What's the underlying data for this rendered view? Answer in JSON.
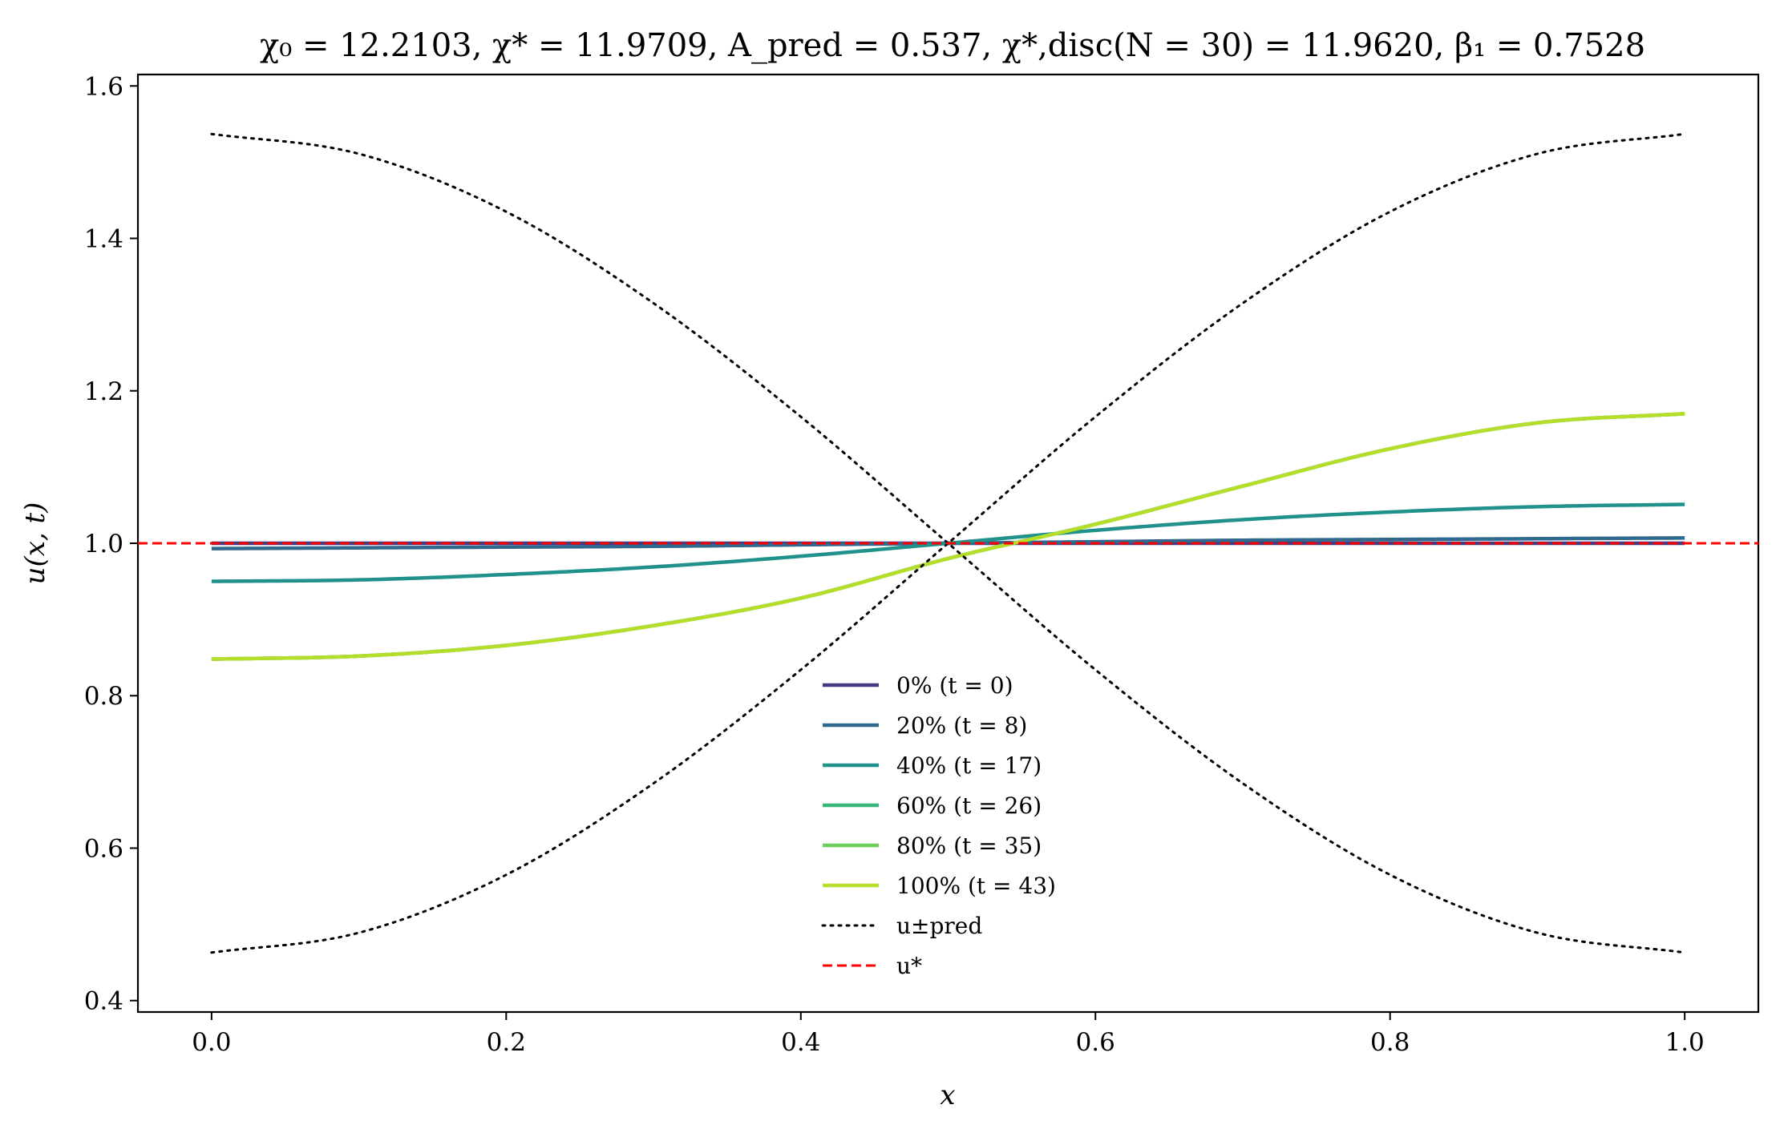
{
  "chart_data": {
    "type": "line",
    "title": "χ₀ = 12.2103,  χ* = 11.9709,  A_pred = 0.537,  χ*,disc(N = 30) = 11.9620,  β₁ = 0.7528",
    "xlabel": "x",
    "ylabel": "u(x, t)",
    "xlim": [
      -0.05,
      1.05
    ],
    "ylim": [
      0.385,
      1.615
    ],
    "xticks": [
      0.0,
      0.2,
      0.4,
      0.6,
      0.8,
      1.0
    ],
    "xtick_labels": [
      "0.0",
      "0.2",
      "0.4",
      "0.6",
      "0.8",
      "1.0"
    ],
    "yticks": [
      0.4,
      0.6,
      0.8,
      1.0,
      1.2,
      1.4,
      1.6
    ],
    "ytick_labels": [
      "0.4",
      "0.6",
      "0.8",
      "1.0",
      "1.2",
      "1.4",
      "1.6"
    ],
    "grid": false,
    "legend_position": "lower-center",
    "x": [
      0.0,
      0.1,
      0.2,
      0.3,
      0.4,
      0.5,
      0.6,
      0.7,
      0.8,
      0.9,
      1.0
    ],
    "series": [
      {
        "name": "0% (t = 0)",
        "color": "#443983",
        "style": "solid",
        "values": [
          1.0,
          1.0,
          1.0,
          1.0,
          1.0,
          1.0,
          1.0,
          1.0,
          1.0,
          1.0,
          1.0
        ]
      },
      {
        "name": "20% (t = 8)",
        "color": "#31688e",
        "style": "solid",
        "values": [
          0.993,
          0.994,
          0.995,
          0.996,
          0.998,
          1.0,
          1.002,
          1.004,
          1.005,
          1.006,
          1.007
        ]
      },
      {
        "name": "40% (t = 17)",
        "color": "#21918c",
        "style": "solid",
        "values": [
          0.95,
          0.952,
          0.959,
          0.969,
          0.983,
          1.0,
          1.017,
          1.031,
          1.041,
          1.048,
          1.051
        ]
      },
      {
        "name": "60% (t = 26)",
        "color": "#35b779",
        "style": "solid",
        "values": [
          0.848,
          0.852,
          0.866,
          0.892,
          0.928,
          0.98,
          1.025,
          1.075,
          1.124,
          1.158,
          1.17
        ]
      },
      {
        "name": "80% (t = 35)",
        "color": "#6ece58",
        "style": "solid",
        "values": [
          0.848,
          0.852,
          0.866,
          0.892,
          0.928,
          0.98,
          1.025,
          1.075,
          1.124,
          1.158,
          1.17
        ]
      },
      {
        "name": "100% (t = 43)",
        "color": "#b5de2b",
        "style": "solid",
        "values": [
          0.848,
          0.852,
          0.866,
          0.892,
          0.928,
          0.98,
          1.025,
          1.075,
          1.124,
          1.158,
          1.17
        ]
      },
      {
        "name": "u±pred",
        "color": "#000000",
        "style": "dotted",
        "values": [
          1.537,
          1.511,
          1.435,
          1.315,
          1.166,
          1.0,
          0.834,
          0.685,
          0.565,
          0.489,
          0.463
        ]
      },
      {
        "name": "u±pred",
        "color": "#000000",
        "style": "dotted",
        "legend": false,
        "values": [
          0.463,
          0.489,
          0.565,
          0.685,
          0.834,
          1.0,
          1.166,
          1.315,
          1.435,
          1.511,
          1.537
        ]
      },
      {
        "name": "u*",
        "color": "#ff0000",
        "style": "dashed",
        "full_width": true,
        "values": [
          1.0,
          1.0,
          1.0,
          1.0,
          1.0,
          1.0,
          1.0,
          1.0,
          1.0,
          1.0,
          1.0
        ]
      }
    ]
  }
}
